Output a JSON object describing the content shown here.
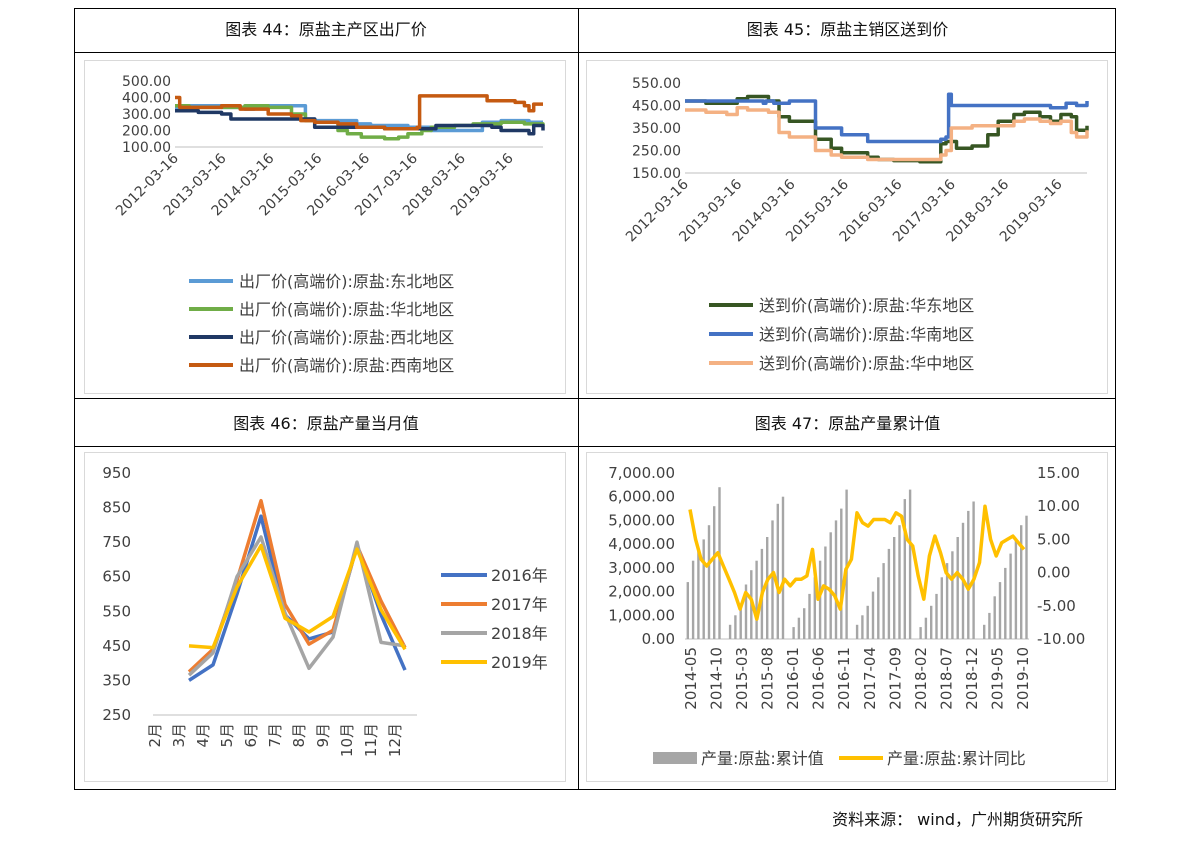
{
  "panels": [
    {
      "title": "图表  44：原盐主产区出厂价"
    },
    {
      "title": "图表  45：原盐主销区送到价"
    },
    {
      "title": "图表  46：原盐产量当月值"
    },
    {
      "title": "图表  47：原盐产量累计值"
    }
  ],
  "source": "资料来源：  wind，广州期货研究所",
  "chart_data": [
    {
      "type": "line",
      "y_ticks": [
        "500.00",
        "400.00",
        "300.00",
        "200.00",
        "100.00"
      ],
      "ylim": [
        100,
        500
      ],
      "x_ticks": [
        "2012-03-16",
        "2013-03-16",
        "2014-03-16",
        "2015-03-16",
        "2016-03-16",
        "2017-03-16",
        "2018-03-16",
        "2019-03-16"
      ],
      "xlim": [
        2012.0,
        2019.9
      ],
      "legend_position": "bottom",
      "series": [
        {
          "name": "出厂价(高端价):原盐:东北地区",
          "color": "#5b9bd5",
          "x": [
            2012.0,
            2012.2,
            2013.0,
            2013.5,
            2013.7,
            2014.5,
            2014.8,
            2015.0,
            2015.9,
            2016.2,
            2017.0,
            2017.5,
            2017.6,
            2018.3,
            2018.6,
            2019.0,
            2019.4,
            2019.6,
            2019.9
          ],
          "y": [
            340,
            350,
            340,
            330,
            350,
            350,
            270,
            260,
            240,
            230,
            220,
            200,
            200,
            200,
            250,
            260,
            260,
            250,
            250
          ]
        },
        {
          "name": "出厂价(高端价):原盐:华北地区",
          "color": "#70ad47",
          "x": [
            2012.0,
            2012.3,
            2013.0,
            2013.5,
            2014.0,
            2014.5,
            2014.8,
            2015.0,
            2015.5,
            2015.7,
            2016.0,
            2016.5,
            2016.8,
            2017.0,
            2017.3,
            2017.5,
            2018.0,
            2018.4,
            2019.0,
            2019.5,
            2019.9
          ],
          "y": [
            350,
            340,
            340,
            350,
            340,
            300,
            260,
            250,
            200,
            180,
            160,
            150,
            160,
            180,
            200,
            220,
            230,
            240,
            250,
            240,
            230
          ]
        },
        {
          "name": "出厂价(高端价):原盐:西北地区",
          "color": "#1f3864",
          "x": [
            2012.0,
            2012.5,
            2013.0,
            2013.2,
            2014.0,
            2014.6,
            2015.0,
            2015.5,
            2016.0,
            2016.5,
            2017.0,
            2017.4,
            2017.6,
            2018.0,
            2018.5,
            2018.8,
            2019.0,
            2019.3,
            2019.6,
            2019.7,
            2019.9
          ],
          "y": [
            320,
            310,
            300,
            270,
            270,
            270,
            220,
            220,
            220,
            210,
            210,
            210,
            230,
            230,
            230,
            220,
            200,
            200,
            180,
            230,
            200
          ]
        },
        {
          "name": "出厂价(高端价):原盐:西南地区",
          "color": "#c55a11",
          "x": [
            2012.0,
            2012.1,
            2012.5,
            2013.0,
            2013.4,
            2014.0,
            2014.5,
            2014.7,
            2015.0,
            2015.5,
            2015.9,
            2016.5,
            2017.0,
            2017.2,
            2017.25,
            2017.5,
            2018.0,
            2018.5,
            2018.7,
            2019.0,
            2019.3,
            2019.5,
            2019.6,
            2019.7,
            2019.9
          ],
          "y": [
            400,
            340,
            340,
            350,
            330,
            300,
            290,
            260,
            250,
            240,
            220,
            210,
            210,
            220,
            410,
            410,
            410,
            410,
            380,
            380,
            370,
            350,
            320,
            360,
            360
          ]
        }
      ]
    },
    {
      "type": "line",
      "y_ticks": [
        "550.00",
        "450.00",
        "350.00",
        "250.00",
        "150.00"
      ],
      "ylim": [
        150,
        550
      ],
      "x_ticks": [
        "2012-03-16",
        "2013-03-16",
        "2014-03-16",
        "2015-03-16",
        "2016-03-16",
        "2017-03-16",
        "2018-03-16",
        "2019-03-16"
      ],
      "xlim": [
        2012.0,
        2019.7
      ],
      "legend_position": "bottom",
      "series": [
        {
          "name": "送到价(高端价):原盐:华东地区",
          "color": "#375623",
          "x": [
            2012.0,
            2012.4,
            2012.8,
            2013.0,
            2013.2,
            2013.6,
            2013.8,
            2014.0,
            2014.5,
            2014.8,
            2015.0,
            2015.5,
            2015.7,
            2016.0,
            2016.5,
            2016.8,
            2016.9,
            2017.0,
            2017.2,
            2017.5,
            2017.8,
            2018.0,
            2018.3,
            2018.5,
            2018.8,
            2019.0,
            2019.2,
            2019.4,
            2019.5,
            2019.7
          ],
          "y": [
            470,
            460,
            460,
            480,
            490,
            470,
            400,
            380,
            300,
            260,
            240,
            220,
            210,
            205,
            200,
            200,
            280,
            290,
            260,
            270,
            320,
            380,
            410,
            420,
            400,
            380,
            410,
            400,
            340,
            360
          ]
        },
        {
          "name": "送到价(高端价):原盐:华南地区",
          "color": "#4472c4",
          "x": [
            2012.0,
            2012.5,
            2013.0,
            2013.5,
            2013.55,
            2013.7,
            2014.0,
            2014.3,
            2014.5,
            2015.0,
            2015.5,
            2016.0,
            2016.5,
            2016.9,
            2017.0,
            2017.05,
            2017.1,
            2017.5,
            2018.0,
            2018.5,
            2019.0,
            2019.3,
            2019.5,
            2019.7
          ],
          "y": [
            470,
            470,
            470,
            460,
            470,
            460,
            470,
            470,
            350,
            320,
            290,
            290,
            290,
            300,
            310,
            500,
            450,
            450,
            450,
            450,
            440,
            460,
            450,
            470
          ]
        },
        {
          "name": "送到价(高端价):原盐:华中地区",
          "color": "#f4b183",
          "x": [
            2012.0,
            2012.4,
            2012.8,
            2013.0,
            2013.2,
            2013.6,
            2013.8,
            2014.0,
            2014.5,
            2014.8,
            2015.0,
            2015.5,
            2016.0,
            2016.5,
            2016.9,
            2017.0,
            2017.1,
            2017.5,
            2018.0,
            2018.3,
            2018.5,
            2018.8,
            2019.0,
            2019.2,
            2019.4,
            2019.5,
            2019.7
          ],
          "y": [
            430,
            420,
            410,
            440,
            430,
            420,
            330,
            310,
            250,
            230,
            220,
            210,
            210,
            210,
            230,
            250,
            350,
            360,
            360,
            380,
            390,
            380,
            370,
            380,
            330,
            310,
            340
          ]
        }
      ]
    },
    {
      "type": "line",
      "categories": [
        "2月",
        "3月",
        "4月",
        "5月",
        "6月",
        "7月",
        "8月",
        "9月",
        "10月",
        "11月",
        "12月"
      ],
      "y_ticks": [
        "950",
        "850",
        "750",
        "650",
        "550",
        "450",
        "350",
        "250"
      ],
      "ylim": [
        250,
        950
      ],
      "legend_position": "right",
      "series": [
        {
          "name": "2016年",
          "color": "#4472c4",
          "values": [
            null,
            350,
            395,
            600,
            825,
            540,
            470,
            490,
            740,
            540,
            380
          ]
        },
        {
          "name": "2017年",
          "color": "#ed7d31",
          "values": [
            null,
            375,
            440,
            640,
            870,
            570,
            455,
            495,
            740,
            580,
            445
          ]
        },
        {
          "name": "2018年",
          "color": "#a5a5a5",
          "values": [
            null,
            365,
            430,
            650,
            765,
            545,
            385,
            475,
            750,
            460,
            450
          ]
        },
        {
          "name": "2019年",
          "color": "#ffc000",
          "values": [
            null,
            450,
            445,
            620,
            740,
            530,
            490,
            535,
            730,
            555,
            440
          ]
        }
      ]
    },
    {
      "type": "bar+line",
      "x_ticks": [
        "2014-05",
        "2014-10",
        "2015-03",
        "2015-08",
        "2016-01",
        "2016-06",
        "2016-11",
        "2017-04",
        "2017-09",
        "2018-02",
        "2018-07",
        "2018-12",
        "2019-05",
        "2019-10"
      ],
      "y_left_ticks": [
        "7,000.00",
        "6,000.00",
        "5,000.00",
        "4,000.00",
        "3,000.00",
        "2,000.00",
        "1,000.00",
        "0.00"
      ],
      "y_right_ticks": [
        "15.00",
        "10.00",
        "5.00",
        "0.00",
        "-5.00",
        "-10.00"
      ],
      "y_left_lim": [
        0,
        7000
      ],
      "y_right_lim": [
        -10,
        15
      ],
      "legend_position": "bottom",
      "series": [
        {
          "name": "产量:原盐:累计值",
          "type": "bar",
          "color": "#a6a6a6",
          "values": [
            2400,
            3300,
            3700,
            4200,
            4800,
            5600,
            6400,
            null,
            600,
            1000,
            1500,
            2300,
            2900,
            3300,
            3800,
            4300,
            5000,
            5700,
            6000,
            null,
            500,
            900,
            1300,
            1900,
            2600,
            3300,
            3900,
            4500,
            5000,
            5500,
            6300,
            null,
            600,
            1000,
            1400,
            2000,
            2600,
            3200,
            3800,
            4300,
            4800,
            5900,
            6300,
            null,
            500,
            900,
            1400,
            1900,
            2600,
            3200,
            3700,
            4300,
            4900,
            5400,
            5800,
            null,
            600,
            1100,
            1800,
            2400,
            3000,
            3600,
            4200,
            4800,
            5200
          ]
        },
        {
          "name": "产量:原盐:累计同比",
          "type": "line",
          "color": "#ffc000",
          "values": [
            9.5,
            5,
            2,
            1,
            2,
            3,
            1,
            -1,
            -3,
            -5.5,
            -3,
            -4,
            -7,
            -3,
            -1,
            0,
            -3,
            -1,
            -2,
            -1,
            -1,
            -0.5,
            3.5,
            -4,
            -2,
            -2.5,
            -3.5,
            -5.5,
            0.5,
            2,
            9,
            7.5,
            7,
            8,
            8,
            8,
            7.5,
            9,
            8.5,
            5,
            4,
            -0.5,
            -4,
            2.5,
            5.5,
            3,
            0,
            -1,
            0,
            -1,
            -2.5,
            -1,
            1.5,
            10,
            5,
            2.5,
            4.5,
            5,
            5.5,
            4.5,
            3.5
          ]
        }
      ]
    }
  ]
}
